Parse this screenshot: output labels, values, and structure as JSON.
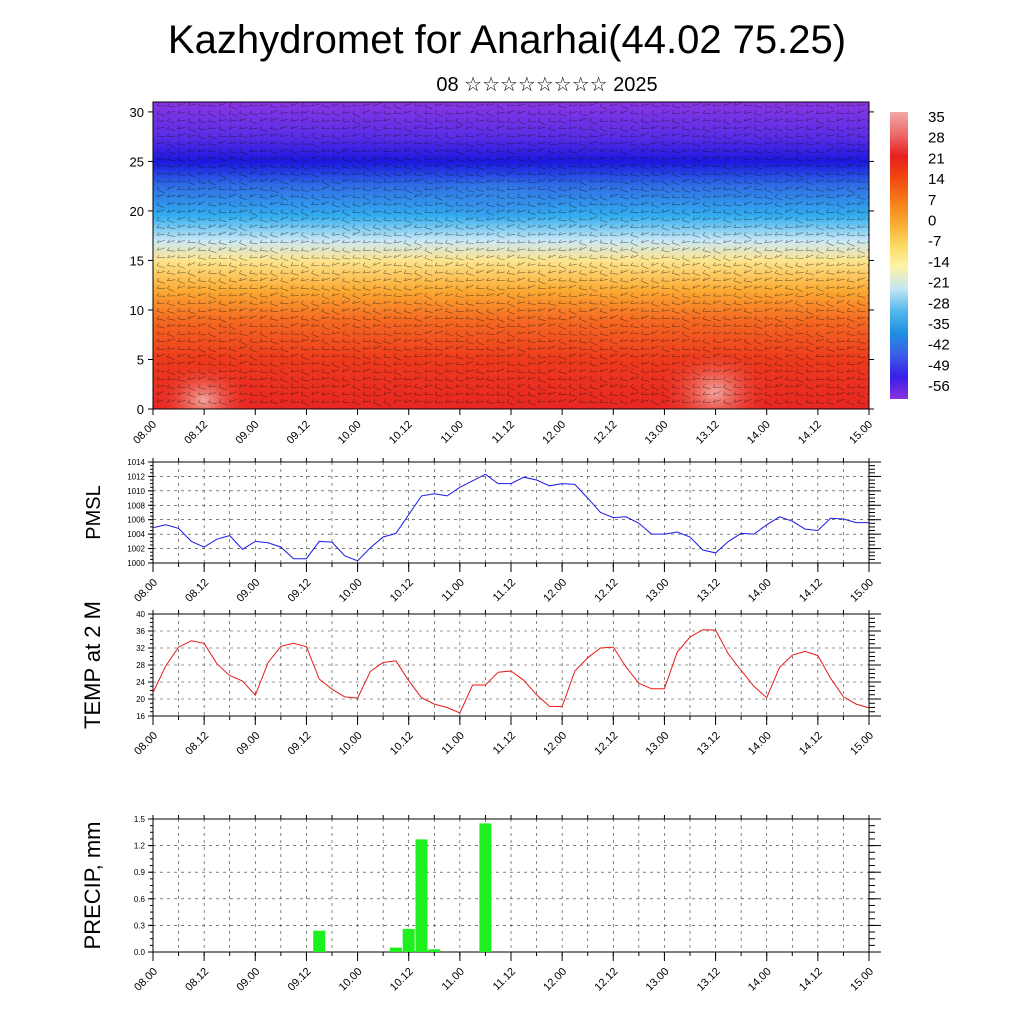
{
  "title": "Kazhydromet for Anarhai(44.02 75.25)",
  "subtitle": "08 ☆☆☆☆☆☆☆☆ 2025",
  "chart_data": [
    {
      "type": "heatmap",
      "description_key": "cross-section",
      "y_ticks": [
        "0",
        "5",
        "10",
        "15",
        "20",
        "25",
        "30"
      ],
      "ylim": [
        0,
        31
      ],
      "x_ticks": [
        "08.00",
        "08.12",
        "09.00",
        "09.12",
        "10.00",
        "10.12",
        "11.00",
        "11.12",
        "12.00",
        "12.12",
        "13.00",
        "13.12",
        "14.00",
        "14.12",
        "15.00"
      ],
      "colorbar_labels": [
        "35",
        "28",
        "21",
        "14",
        "7",
        "0",
        "-7",
        "-14",
        "-21",
        "-28",
        "-35",
        "-42",
        "-49",
        "-56"
      ],
      "colorbar_colors": [
        "#f0a8a8",
        "#ee6a6a",
        "#e82020",
        "#f24810",
        "#f57a18",
        "#f8a830",
        "#fbd860",
        "#fdf3a8",
        "#c4e6f2",
        "#55b8ee",
        "#1e90e0",
        "#3a5ee8",
        "#3a1ee8",
        "#8a30e0"
      ],
      "level_profile": [
        {
          "level": 0,
          "color": "#e82622"
        },
        {
          "level": 5,
          "color": "#ee3a1c"
        },
        {
          "level": 9,
          "color": "#f56a22"
        },
        {
          "level": 12,
          "color": "#fbab33"
        },
        {
          "level": 15,
          "color": "#fde58e"
        },
        {
          "level": 17,
          "color": "#c9e8f6"
        },
        {
          "level": 19.5,
          "color": "#33adef"
        },
        {
          "level": 22.5,
          "color": "#2f6fe6"
        },
        {
          "level": 25,
          "color": "#1b18e0"
        },
        {
          "level": 27.5,
          "color": "#5a2de6"
        },
        {
          "level": 31,
          "color": "#8a36e4"
        }
      ]
    },
    {
      "type": "line",
      "ylabel": "PMSL",
      "ylim": [
        1000,
        1014
      ],
      "y_ticks": [
        "1000",
        "1002",
        "1004",
        "1006",
        "1008",
        "1010",
        "1012",
        "1014"
      ],
      "x_ticks": [
        "08.00",
        "08.12",
        "09.00",
        "09.12",
        "10.00",
        "10.12",
        "11.00",
        "11.12",
        "12.00",
        "12.12",
        "13.00",
        "13.12",
        "14.00",
        "14.12",
        "15.00"
      ],
      "color": "#1a1ae6",
      "x_hours": [
        0,
        3,
        6,
        9,
        12,
        15,
        18,
        21,
        24,
        27,
        30,
        33,
        36,
        39,
        42,
        45,
        48,
        51,
        54,
        57,
        60,
        63,
        66,
        69,
        72,
        75,
        78,
        81,
        84,
        87,
        90,
        93,
        96,
        99,
        102,
        105,
        108,
        111,
        114,
        117,
        120,
        123,
        126,
        129,
        132,
        135,
        138,
        141,
        144,
        147,
        150,
        153,
        156,
        159,
        162,
        165,
        168
      ],
      "values": [
        1004.9,
        1005.3,
        1004.8,
        1003.0,
        1002.2,
        1003.3,
        1003.8,
        1001.9,
        1003.0,
        1002.8,
        1002.2,
        1000.6,
        1000.6,
        1003.0,
        1002.9,
        1001.0,
        1000.3,
        1002.1,
        1003.6,
        1004.1,
        1006.7,
        1009.3,
        1009.6,
        1009.3,
        1010.5,
        1011.4,
        1012.3,
        1011.0,
        1011.0,
        1011.9,
        1011.5,
        1010.7,
        1011.0,
        1010.9,
        1009.0,
        1007.0,
        1006.3,
        1006.4,
        1005.5,
        1004.0,
        1004.0,
        1004.3,
        1003.6,
        1001.8,
        1001.4,
        1003.0,
        1004.1,
        1004.0,
        1005.3,
        1006.4,
        1005.8,
        1004.7,
        1004.5,
        1006.2,
        1006.1,
        1005.6,
        1005.6
      ]
    },
    {
      "type": "line",
      "ylabel": "TEMP at 2 M",
      "ylim": [
        16,
        40
      ],
      "y_ticks": [
        "16",
        "20",
        "24",
        "28",
        "32",
        "36",
        "40"
      ],
      "x_ticks": [
        "08.00",
        "08.12",
        "09.00",
        "09.12",
        "10.00",
        "10.12",
        "11.00",
        "11.12",
        "12.00",
        "12.12",
        "13.00",
        "13.12",
        "14.00",
        "14.12",
        "15.00"
      ],
      "color": "#e61a1a",
      "x_hours": [
        0,
        3,
        6,
        9,
        12,
        15,
        18,
        21,
        24,
        27,
        30,
        33,
        36,
        39,
        42,
        45,
        48,
        51,
        54,
        57,
        60,
        63,
        66,
        69,
        72,
        75,
        78,
        81,
        84,
        87,
        90,
        93,
        96,
        99,
        102,
        105,
        108,
        111,
        114,
        117,
        120,
        123,
        126,
        129,
        132,
        135,
        138,
        141,
        144,
        147,
        150,
        153,
        156,
        159,
        162,
        165,
        168
      ],
      "values": [
        21.5,
        27.8,
        32.2,
        33.7,
        33.1,
        28.3,
        25.5,
        24.2,
        20.9,
        28.6,
        32.4,
        33.1,
        32.3,
        24.7,
        22.3,
        20.5,
        20.2,
        26.5,
        28.6,
        29.0,
        24.3,
        20.3,
        18.8,
        18.0,
        16.7,
        23.3,
        23.3,
        26.3,
        26.6,
        24.4,
        21.0,
        18.3,
        18.2,
        26.6,
        29.7,
        32.0,
        32.2,
        27.5,
        23.7,
        22.4,
        22.4,
        31.0,
        34.6,
        36.3,
        36.2,
        30.6,
        26.7,
        23.0,
        20.3,
        27.4,
        30.3,
        31.2,
        30.2,
        24.9,
        20.5,
        18.8,
        17.9
      ]
    },
    {
      "type": "bar",
      "ylabel": "PRECIP, mm",
      "ylim": [
        0,
        1.5
      ],
      "y_ticks": [
        "0.0",
        "0.3",
        "0.6",
        "0.9",
        "1.2",
        "1.5"
      ],
      "x_ticks": [
        "08.00",
        "08.12",
        "09.00",
        "09.12",
        "10.00",
        "10.12",
        "11.00",
        "11.12",
        "12.00",
        "12.12",
        "13.00",
        "13.12",
        "14.00",
        "14.12",
        "15.00"
      ],
      "color": "#1ef01e",
      "x_hours": [
        39,
        57,
        60,
        63,
        66,
        78
      ],
      "values": [
        0.24,
        0.05,
        0.26,
        1.27,
        0.03,
        1.45
      ]
    }
  ]
}
